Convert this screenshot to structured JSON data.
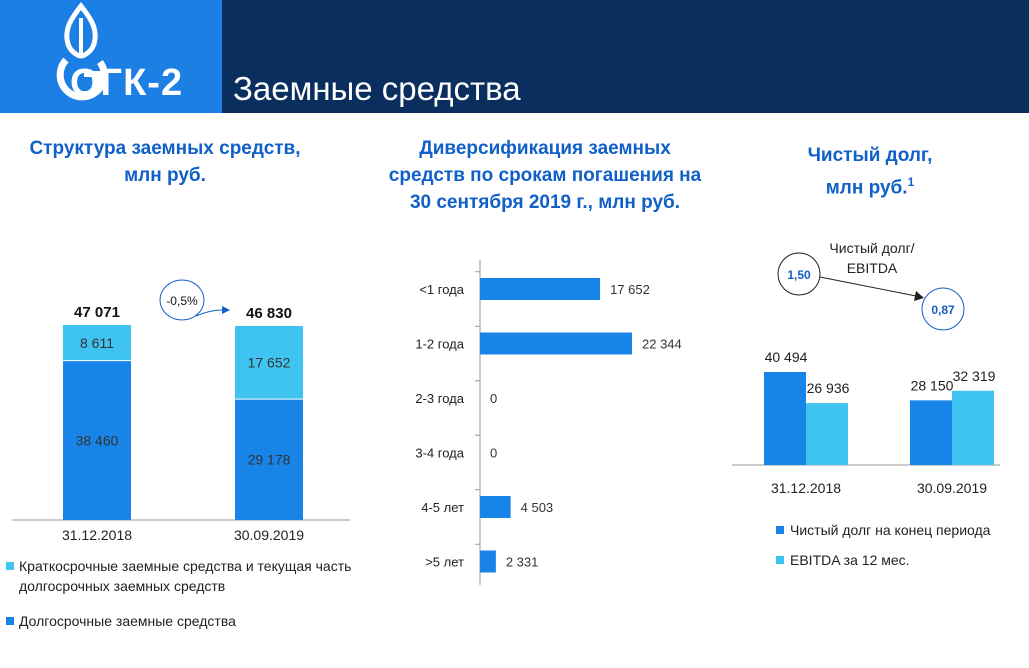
{
  "header": {
    "logo_text": "ОГК-2",
    "title": "Заемные средства",
    "colors": {
      "bar": "#0a2f5e",
      "logo_bg": "#1b7fe3"
    }
  },
  "colors": {
    "dark_blue": "#1884e8",
    "light_blue": "#3fc4f2",
    "title_blue": "#1060c8"
  },
  "sections": {
    "structure": {
      "title_line1": "Структура заемных средств,",
      "title_line2": "млн руб."
    },
    "maturity": {
      "title_line1": "Диверсификация заемных",
      "title_line2": "средств по срокам погашения на",
      "title_line3": "30 сентября 2019 г., млн руб."
    },
    "net_debt": {
      "title_line1": "Чистый долг,",
      "title_line2": "млн руб.",
      "title_sup": "1"
    }
  },
  "chart_data": [
    {
      "type": "bar",
      "stacked": true,
      "categories": [
        "31.12.2018",
        "30.09.2019"
      ],
      "series": [
        {
          "name": "Долгосрочные заемные средства",
          "values": [
            38460,
            29178
          ],
          "labels": [
            "38 460",
            "29 178"
          ]
        },
        {
          "name": "Краткосрочные заемные средства и текущая часть долгосрочных заемных средств",
          "values": [
            8611,
            17652
          ],
          "labels": [
            "8 611",
            "17 652"
          ]
        }
      ],
      "totals": [
        "47 071",
        "46 830"
      ],
      "change_label": "-0,5%",
      "legend": {
        "short_term_line1": "Краткосрочные заемные средства и текущая часть",
        "short_term_line2": "долгосрочных заемных средств",
        "long_term": "Долгосрочные заемные средства"
      }
    },
    {
      "type": "bar",
      "orientation": "horizontal",
      "categories": [
        "<1 года",
        "1-2 года",
        "2-3 года",
        "3-4 года",
        "4-5 лет",
        ">5 лет"
      ],
      "values": [
        17652,
        22344,
        0,
        0,
        4503,
        2331
      ],
      "labels": [
        "17 652",
        "22 344",
        "0",
        "0",
        "4 503",
        "2 331"
      ]
    },
    {
      "type": "bar",
      "categories": [
        "31.12.2018",
        "30.09.2019"
      ],
      "series": [
        {
          "name": "Чистый долг на конец периода",
          "values": [
            40494,
            28150
          ],
          "labels": [
            "40 494",
            "28 150"
          ]
        },
        {
          "name": "EBITDA за 12 мес.",
          "values": [
            26936,
            32319
          ],
          "labels": [
            "26 936",
            "32 319"
          ]
        }
      ],
      "ratio_label_line1": "Чистый долг/",
      "ratio_label_line2": "EBITDA",
      "ratios": [
        "1,50",
        "0,87"
      ]
    }
  ]
}
